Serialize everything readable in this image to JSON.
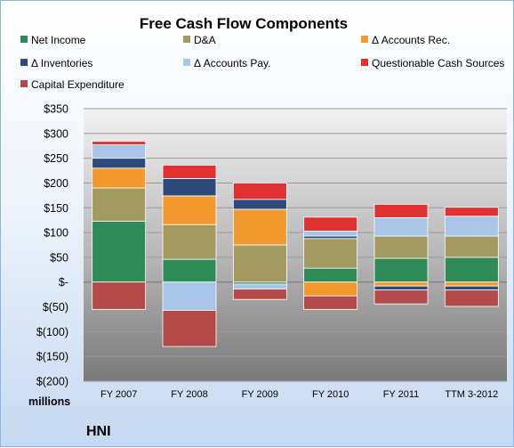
{
  "chart_data": {
    "type": "bar",
    "stacked": true,
    "title": "Free Cash Flow Components",
    "unit_label": "millions",
    "company": "HNI",
    "categories": [
      "FY 2007",
      "FY 2008",
      "FY 2009",
      "FY 2010",
      "FY 2011",
      "TTM 3-2012"
    ],
    "ylim": [
      -200,
      350
    ],
    "yticks": [
      350,
      300,
      250,
      200,
      150,
      100,
      50,
      0,
      -50,
      -100,
      -150,
      -200
    ],
    "ytick_labels": [
      "$350",
      "$300",
      "$250",
      "$200",
      "$150",
      "$100",
      "$50",
      "$-",
      "$(50)",
      "$(100)",
      "$(150)",
      "$(200)"
    ],
    "grid": true,
    "legend_position": "top",
    "series": [
      {
        "name": "Net Income",
        "color": "#2e8b57",
        "values": [
          123,
          46,
          -4,
          28,
          48,
          50
        ]
      },
      {
        "name": "D&A",
        "color": "#a39a62",
        "values": [
          67,
          70,
          75,
          60,
          45,
          43
        ]
      },
      {
        "name": "Δ Accounts Rec.",
        "color": "#f39a2e",
        "values": [
          40,
          58,
          72,
          -28,
          -8,
          -8
        ]
      },
      {
        "name": "Δ Inventories",
        "color": "#2e4a7d",
        "values": [
          20,
          35,
          20,
          5,
          -8,
          -8
        ]
      },
      {
        "name": "Δ Accounts Pay.",
        "color": "#a8c4e6",
        "values": [
          27,
          -57,
          -10,
          10,
          37,
          40
        ]
      },
      {
        "name": "Questionable Cash Sources",
        "color": "#e03030",
        "values": [
          7,
          27,
          33,
          28,
          27,
          18
        ]
      },
      {
        "name": "Capital Expenditure",
        "color": "#b34a4a",
        "values": [
          -55,
          -73,
          -21,
          -27,
          -28,
          -33
        ]
      }
    ]
  }
}
